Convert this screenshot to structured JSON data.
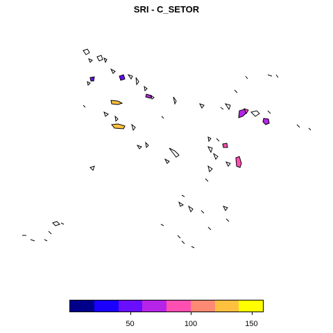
{
  "map": {
    "title": "SRI - C_SETOR",
    "legend": {
      "colors": [
        "#00008B",
        "#1A00FF",
        "#6A0EFF",
        "#B624E8",
        "#FF4FB0",
        "#FF8A74",
        "#FFC040",
        "#FFFF00"
      ],
      "min": 0,
      "max": 160,
      "ticks": [
        {
          "value": 50,
          "label": "50"
        },
        {
          "value": 100,
          "label": "100"
        },
        {
          "value": 150,
          "label": "150"
        }
      ]
    },
    "region_fill_colors": {
      "violet": "#B624E8",
      "pink": "#FF4FB0",
      "blue": "#6A0EFF",
      "orange": "#FFC040"
    }
  }
}
